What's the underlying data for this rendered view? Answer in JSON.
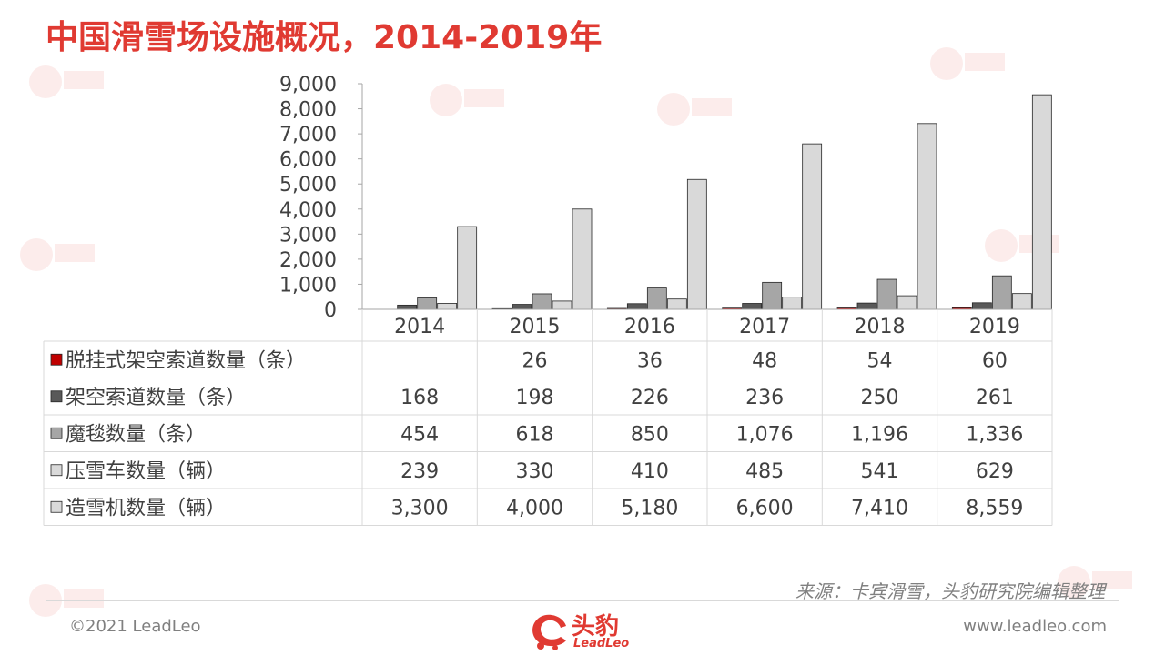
{
  "title": "中国滑雪场设施概况，2014-2019年",
  "source": "来源：卡宾滑雪，头豹研究院编辑整理",
  "footer": {
    "copyright": "©2021 LeadLeo",
    "url": "www.leadleo.com",
    "logo_name": "头豹",
    "logo_sub": "LeadLeo"
  },
  "colors": {
    "title": "#e03a32",
    "accent": "#c00000",
    "series": [
      "#c00000",
      "#595959",
      "#a6a6a6",
      "#d9d9d9",
      "#d9d9d9"
    ]
  },
  "chart_data": {
    "type": "bar",
    "categories": [
      "2014",
      "2015",
      "2016",
      "2017",
      "2018",
      "2019"
    ],
    "ylim": [
      0,
      9000
    ],
    "yticks": [
      "0",
      "1,000",
      "2,000",
      "3,000",
      "4,000",
      "5,000",
      "6,000",
      "7,000",
      "8,000",
      "9,000"
    ],
    "legend": "data-table",
    "grid": false,
    "series": [
      {
        "name": "脱挂式架空索道数量（条）",
        "values": [
          null,
          26,
          36,
          48,
          54,
          60
        ],
        "labels": [
          "",
          "26",
          "36",
          "48",
          "54",
          "60"
        ]
      },
      {
        "name": "架空索道数量（条）",
        "values": [
          168,
          198,
          226,
          236,
          250,
          261
        ],
        "labels": [
          "168",
          "198",
          "226",
          "236",
          "250",
          "261"
        ]
      },
      {
        "name": "魔毯数量（条）",
        "values": [
          454,
          618,
          850,
          1076,
          1196,
          1336
        ],
        "labels": [
          "454",
          "618",
          "850",
          "1,076",
          "1,196",
          "1,336"
        ]
      },
      {
        "name": "压雪车数量（辆）",
        "values": [
          239,
          330,
          410,
          485,
          541,
          629
        ],
        "labels": [
          "239",
          "330",
          "410",
          "485",
          "541",
          "629"
        ]
      },
      {
        "name": "造雪机数量（辆）",
        "values": [
          3300,
          4000,
          5180,
          6600,
          7410,
          8559
        ],
        "labels": [
          "3,300",
          "4,000",
          "5,180",
          "6,600",
          "7,410",
          "8,559"
        ]
      }
    ]
  }
}
